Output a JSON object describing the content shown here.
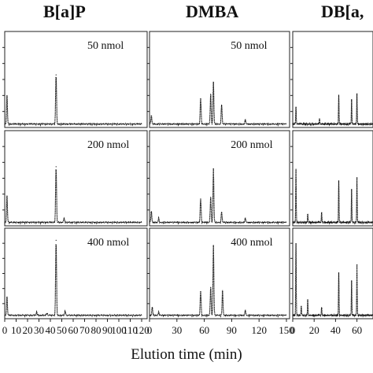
{
  "headers": {
    "col1": "B[a]P",
    "col2": "DMBA",
    "col3": "DB[a,"
  },
  "xlabel": "Elution time (min)",
  "chart_data": {
    "type": "line",
    "xlabel": "Elution time (min)",
    "columns": [
      {
        "name": "B[a]P",
        "xlim": [
          0,
          120
        ],
        "xticks": [
          "0",
          "10",
          "20",
          "30",
          "40",
          "50",
          "60",
          "70",
          "80",
          "90",
          "100",
          "110",
          "120"
        ],
        "rows": [
          {
            "label": "50 nmol",
            "peaks": [
              {
                "x": 2,
                "h": 0.32
              },
              {
                "x": 45,
                "h": 0.57
              }
            ]
          },
          {
            "label": "200 nmol",
            "peaks": [
              {
                "x": 2,
                "h": 0.3
              },
              {
                "x": 45,
                "h": 0.65
              },
              {
                "x": 52,
                "h": 0.05
              }
            ]
          },
          {
            "label": "400 nmol",
            "peaks": [
              {
                "x": 2,
                "h": 0.22
              },
              {
                "x": 28,
                "h": 0.04
              },
              {
                "x": 37,
                "h": 0.03
              },
              {
                "x": 45,
                "h": 0.92
              },
              {
                "x": 53,
                "h": 0.05
              }
            ]
          }
        ]
      },
      {
        "name": "DMBA",
        "xlim": [
          0,
          150
        ],
        "xticks": [
          "0",
          "30",
          "60",
          "90",
          "120",
          "150"
        ],
        "rows": [
          {
            "label": "50 nmol",
            "peaks": [
              {
                "x": 2,
                "h": 0.1
              },
              {
                "x": 56,
                "h": 0.3
              },
              {
                "x": 67,
                "h": 0.35
              },
              {
                "x": 70,
                "h": 0.48
              },
              {
                "x": 79,
                "h": 0.22
              },
              {
                "x": 105,
                "h": 0.05
              }
            ]
          },
          {
            "label": "200 nmol",
            "peaks": [
              {
                "x": 2,
                "h": 0.13
              },
              {
                "x": 10,
                "h": 0.05
              },
              {
                "x": 56,
                "h": 0.28
              },
              {
                "x": 67,
                "h": 0.3
              },
              {
                "x": 70,
                "h": 0.62
              },
              {
                "x": 79,
                "h": 0.12
              },
              {
                "x": 105,
                "h": 0.05
              }
            ]
          },
          {
            "label": "400 nmol",
            "peaks": [
              {
                "x": 3,
                "h": 0.1
              },
              {
                "x": 10,
                "h": 0.04
              },
              {
                "x": 56,
                "h": 0.3
              },
              {
                "x": 67,
                "h": 0.35
              },
              {
                "x": 70,
                "h": 0.85
              },
              {
                "x": 80,
                "h": 0.3
              },
              {
                "x": 105,
                "h": 0.06
              }
            ]
          }
        ]
      },
      {
        "name": "DB[a,",
        "xlim": [
          0,
          75
        ],
        "xticks": [
          "0",
          "20",
          "40",
          "60"
        ],
        "rows": [
          {
            "label": "",
            "peaks": [
              {
                "x": 3,
                "h": 0.2
              },
              {
                "x": 25,
                "h": 0.06
              },
              {
                "x": 43,
                "h": 0.33
              },
              {
                "x": 55,
                "h": 0.28
              },
              {
                "x": 60,
                "h": 0.35
              }
            ]
          },
          {
            "label": "",
            "peaks": [
              {
                "x": 3,
                "h": 0.62
              },
              {
                "x": 14,
                "h": 0.1
              },
              {
                "x": 27,
                "h": 0.12
              },
              {
                "x": 43,
                "h": 0.48
              },
              {
                "x": 55,
                "h": 0.38
              },
              {
                "x": 60,
                "h": 0.52
              }
            ]
          },
          {
            "label": "",
            "peaks": [
              {
                "x": 3,
                "h": 0.88
              },
              {
                "x": 8,
                "h": 0.12
              },
              {
                "x": 14,
                "h": 0.2
              },
              {
                "x": 27,
                "h": 0.1
              },
              {
                "x": 43,
                "h": 0.52
              },
              {
                "x": 55,
                "h": 0.42
              },
              {
                "x": 60,
                "h": 0.62
              }
            ]
          }
        ]
      }
    ]
  }
}
